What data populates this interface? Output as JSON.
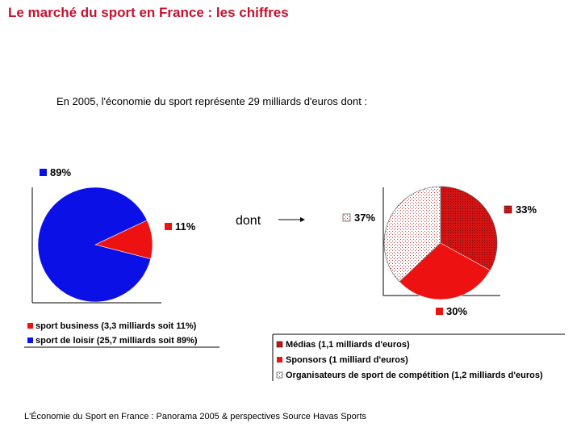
{
  "slide": {
    "title": "Le marché du sport en France : les chiffres",
    "subtitle": "En 2005, l'économie du sport représente 29 milliards d'euros dont :",
    "connector_word": "dont",
    "source": "L'Économie du Sport en France : Panorama 2005 & perspectives Source Havas Sports"
  },
  "colors": {
    "title": "#c8102e",
    "blue": "#0a10e6",
    "red": "#ee1111",
    "red_dark": "#c81010",
    "dotted": "#f4f4f4"
  },
  "chart_data": [
    {
      "type": "pie",
      "title": "",
      "slices": [
        {
          "name": "sport business (3,3 milliards soit 11%)",
          "value": 11,
          "label": "11%",
          "color": "#ee1111"
        },
        {
          "name": "sport de loisir (25,7 milliards soit 89%)",
          "value": 89,
          "label": "89%",
          "color": "#0a10e6"
        }
      ],
      "legend": "bottom-left"
    },
    {
      "type": "pie",
      "title": "",
      "slices": [
        {
          "name": "Médias (1,1 milliards d'euros)",
          "value": 33,
          "label": "33%",
          "color": "#c81010",
          "pattern": "dark-dots"
        },
        {
          "name": "Sponsors (1 milliard d'euros)",
          "value": 30,
          "label": "30%",
          "color": "#ee1111",
          "pattern": "solid"
        },
        {
          "name": "Organisateurs de sport de compétition (1,2 milliards d'euros)",
          "value": 37,
          "label": "37%",
          "color": "#f4f4f4",
          "pattern": "light-dots"
        }
      ],
      "legend": "bottom-right"
    }
  ]
}
